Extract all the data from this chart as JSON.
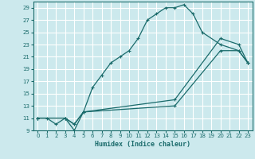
{
  "title": "",
  "xlabel": "Humidex (Indice chaleur)",
  "bg_color": "#cce9ed",
  "grid_color": "#ffffff",
  "line_color": "#1a6b6b",
  "xlim": [
    -0.5,
    23.5
  ],
  "ylim": [
    9,
    30
  ],
  "xticks": [
    0,
    1,
    2,
    3,
    4,
    5,
    6,
    7,
    8,
    9,
    10,
    11,
    12,
    13,
    14,
    15,
    16,
    17,
    18,
    19,
    20,
    21,
    22,
    23
  ],
  "yticks": [
    9,
    11,
    13,
    15,
    17,
    19,
    21,
    23,
    25,
    27,
    29
  ],
  "curve1_x": [
    0,
    1,
    2,
    3,
    4,
    5,
    6,
    7,
    8,
    9,
    10,
    11,
    12,
    13,
    14,
    15,
    16,
    17,
    18,
    20,
    22,
    23
  ],
  "curve1_y": [
    11,
    11,
    10,
    11,
    9,
    12,
    16,
    18,
    20,
    21,
    22,
    24,
    27,
    28,
    29,
    29,
    29.5,
    28,
    25,
    23,
    22,
    20
  ],
  "curve2_x": [
    0,
    3,
    4,
    5,
    15,
    20,
    22,
    23
  ],
  "curve2_y": [
    11,
    11,
    10,
    12,
    14,
    24,
    23,
    20
  ],
  "curve3_x": [
    0,
    3,
    4,
    5,
    15,
    20,
    22,
    23
  ],
  "curve3_y": [
    11,
    11,
    10,
    12,
    13,
    22,
    22,
    20
  ]
}
